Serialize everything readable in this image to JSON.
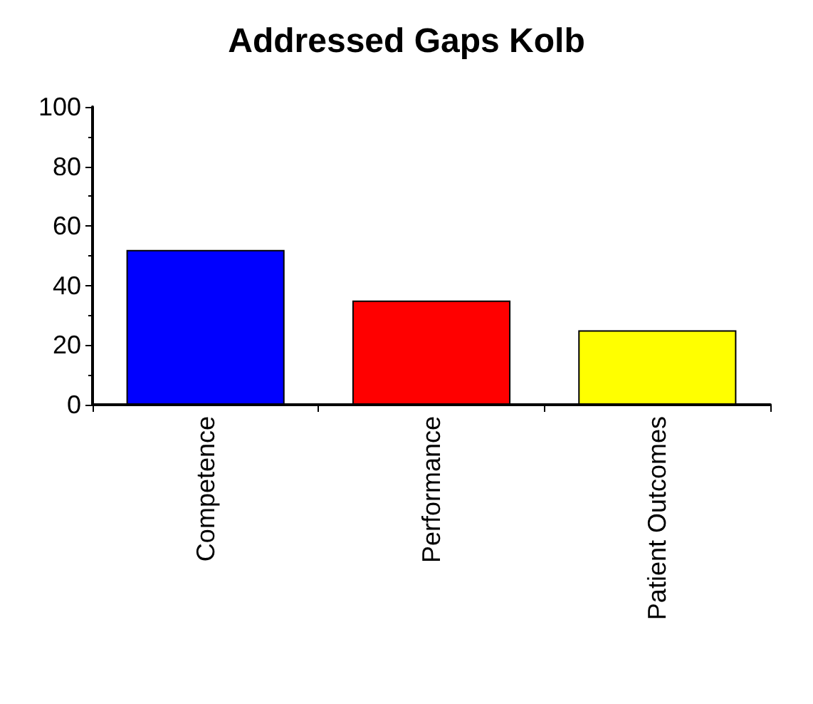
{
  "chart_data": {
    "type": "bar",
    "title": "Addressed Gaps Kolb",
    "categories": [
      "Competence",
      "Performance",
      "Patient Outcomes"
    ],
    "values": [
      52,
      35,
      25
    ],
    "colors": [
      "#0000ff",
      "#ff0000",
      "#ffff00"
    ],
    "ylim": [
      0,
      100
    ],
    "yticks": [
      0,
      20,
      40,
      60,
      80,
      100
    ],
    "grid": false
  }
}
